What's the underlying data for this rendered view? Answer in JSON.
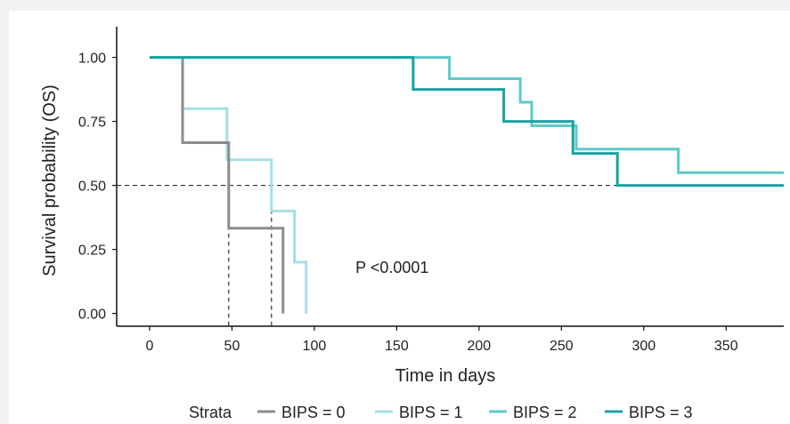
{
  "chart_data": {
    "type": "line",
    "step": true,
    "xlabel": "Time in days",
    "ylabel": "Survival probability (OS)",
    "xlim": [
      -20,
      385
    ],
    "ylim": [
      -0.05,
      1.12
    ],
    "xticks": [
      0,
      50,
      100,
      150,
      200,
      250,
      300,
      350
    ],
    "xtick_labels": [
      "0",
      "50",
      "100",
      "150",
      "200",
      "250",
      "300",
      "350"
    ],
    "yticks": [
      0,
      0.25,
      0.5,
      0.75,
      1
    ],
    "ytick_labels": [
      "0.00",
      "0.25",
      "0.50",
      "0.75",
      "1.00"
    ],
    "annotation": "P <0.0001",
    "annotation_pos": {
      "x": 125,
      "y": 0.18
    },
    "median_line": {
      "y": 0.5,
      "x_drops": [
        48,
        74
      ]
    },
    "legend": {
      "title": "Strata",
      "placement": "bottom"
    },
    "colors": {
      "bips0": "#8c8c8c",
      "bips1": "#a3dfe3",
      "bips2": "#5ec9c9",
      "bips3": "#17a3a3"
    },
    "series": [
      {
        "name": "BIPS = 0",
        "color": "#8c8c8c",
        "x": [
          20,
          20,
          48,
          48,
          81,
          81
        ],
        "y": [
          1.0,
          0.667,
          0.667,
          0.333,
          0.333,
          0.0
        ]
      },
      {
        "name": "BIPS = 1",
        "color": "#a3dfe3",
        "x": [
          20,
          20,
          47,
          47,
          74,
          74,
          88,
          88,
          95,
          95
        ],
        "y": [
          1.0,
          0.8,
          0.8,
          0.6,
          0.6,
          0.4,
          0.4,
          0.2,
          0.2,
          0.0
        ]
      },
      {
        "name": "BIPS = 2",
        "color": "#5ec9c9",
        "x": [
          0,
          182,
          182,
          225,
          225,
          232,
          232,
          259,
          259,
          321,
          321,
          385
        ],
        "y": [
          1.0,
          1.0,
          0.917,
          0.917,
          0.825,
          0.825,
          0.733,
          0.733,
          0.642,
          0.642,
          0.55,
          0.55
        ]
      },
      {
        "name": "BIPS = 3",
        "color": "#17a3a3",
        "x": [
          0,
          160,
          160,
          215,
          215,
          257,
          257,
          284,
          284,
          385
        ],
        "y": [
          1.0,
          1.0,
          0.875,
          0.875,
          0.75,
          0.75,
          0.625,
          0.625,
          0.5,
          0.5
        ]
      }
    ]
  }
}
